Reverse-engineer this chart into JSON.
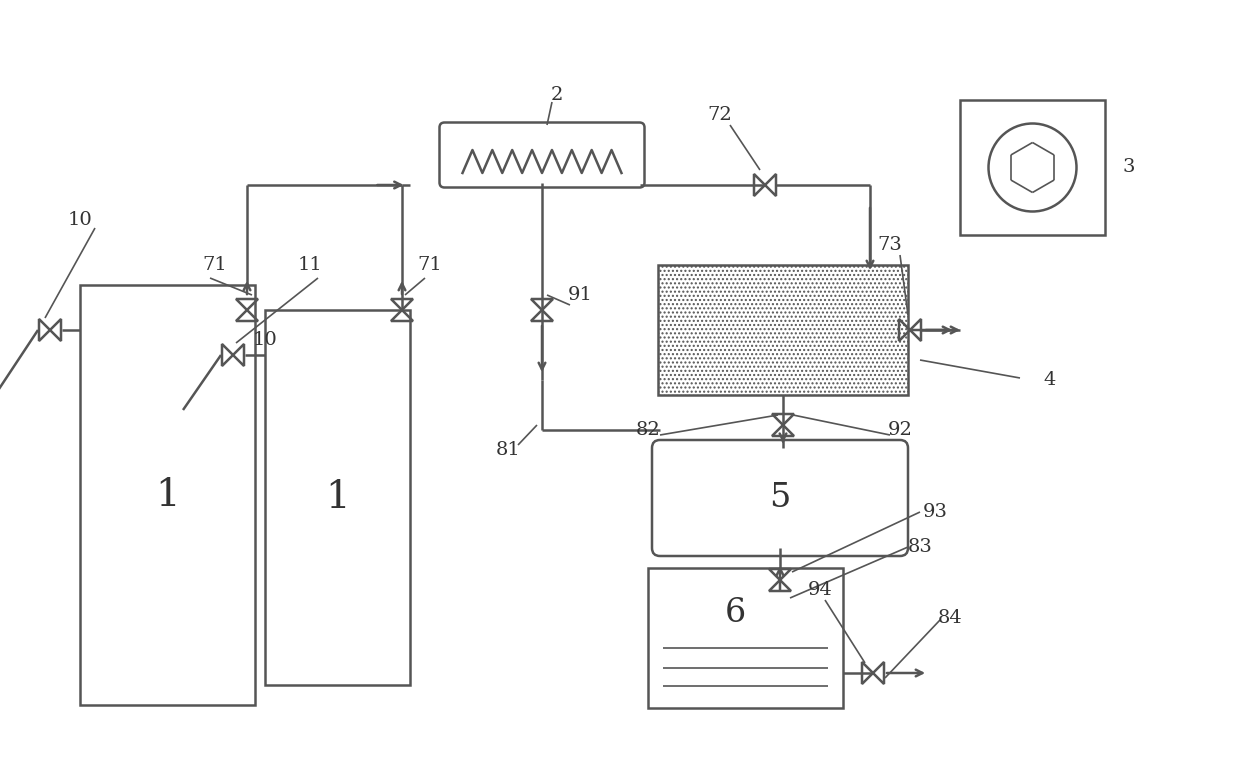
{
  "bg_color": "#ffffff",
  "line_color": "#555555",
  "label_color": "#333333",
  "fig_width": 12.4,
  "fig_height": 7.6
}
